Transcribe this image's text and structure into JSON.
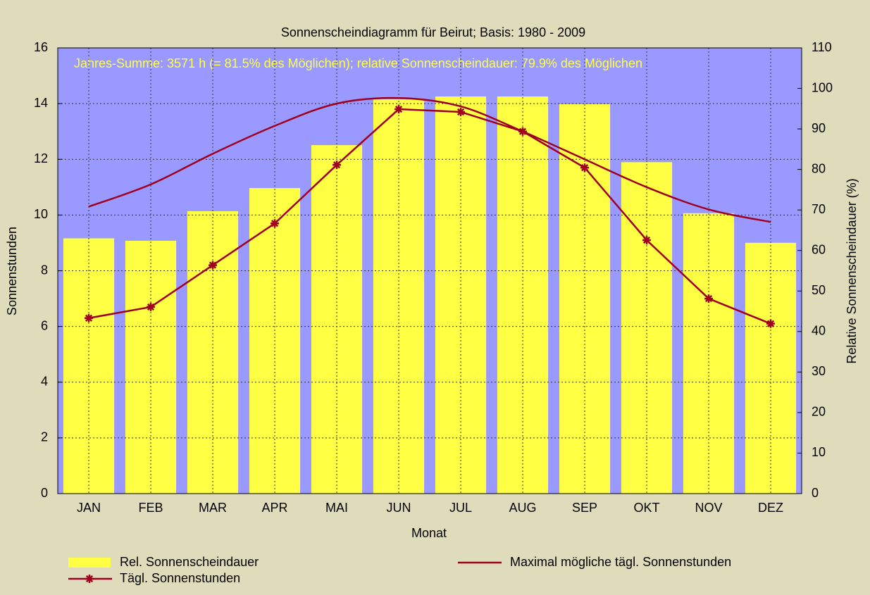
{
  "chart_data": {
    "type": "bar-line",
    "title": "Sonnenscheindiagramm für Beirut; Basis: 1980 - 2009",
    "annotation": "Jahres-Summe: 3571 h (= 81.5% des Möglichen);  relative Sonnenscheindauer: 79.9% des Möglichen",
    "x_label": "Monat",
    "y_label": "Sonnenstunden",
    "y2_label": "Relative Sonnenscheindauer (%)",
    "categories": [
      "JAN",
      "FEB",
      "MAR",
      "APR",
      "MAI",
      "JUN",
      "JUL",
      "AUG",
      "SEP",
      "OKT",
      "NOV",
      "DEZ"
    ],
    "series": [
      {
        "name": "Rel. Sonnenscheindauer",
        "color": "#ffff44",
        "axis": "y2",
        "kind": "bar",
        "values": [
          63,
          62.4,
          69.7,
          75.4,
          86,
          97.3,
          98,
          98,
          96.1,
          81.8,
          69.2,
          61.9
        ]
      },
      {
        "name": "Tägl. Sonnenstunden",
        "color": "#a00020",
        "kind": "line-marker",
        "values": [
          6.3,
          6.7,
          8.2,
          9.7,
          11.8,
          13.8,
          13.7,
          13.0,
          11.7,
          9.1,
          7.0,
          6.1
        ]
      },
      {
        "name": "Maximal mögliche tägl. Sonnenstunden",
        "color": "#a00020",
        "kind": "line",
        "values": [
          10.3,
          11.1,
          12.2,
          13.2,
          14.0,
          14.2,
          13.9,
          13.0,
          12.0,
          11.0,
          10.2,
          9.75
        ]
      }
    ],
    "ylim": [
      0,
      16
    ],
    "yticks": [
      0,
      2,
      4,
      6,
      8,
      10,
      12,
      14,
      16
    ],
    "y2lim": [
      0,
      110
    ],
    "y2ticks": [
      0,
      10,
      20,
      30,
      40,
      50,
      60,
      70,
      80,
      90,
      100,
      110
    ],
    "grid": true,
    "plot_background": "#9999ff",
    "annotation_color": "#ffff44"
  }
}
